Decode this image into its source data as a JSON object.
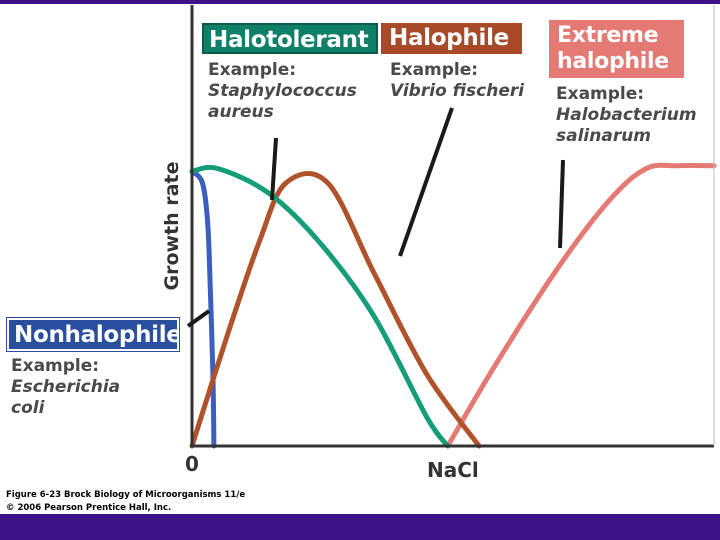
{
  "colors": {
    "frame": "#3d1286",
    "nonhalophile": "#3a5fc0",
    "halotolerant": "#139d78",
    "halophile": "#b0522a",
    "extreme_halophile": "#e57a75",
    "halotolerant_box": "#0f8068",
    "halophile_box": "#a84a28",
    "nonhalophile_box": "#2a4f9e"
  },
  "labels": {
    "halotolerant": {
      "title": "Halotolerant",
      "example_heading": "Example:",
      "species_line1": "Staphylococcus",
      "species_line2": "aureus"
    },
    "halophile": {
      "title": "Halophile",
      "example_heading": "Example:",
      "species_line1": "Vibrio fischeri"
    },
    "extreme_halophile": {
      "title_line1": "Extreme",
      "title_line2": "halophile",
      "example_heading": "Example:",
      "species_line1": "Halobacterium",
      "species_line2": "salinarum"
    },
    "nonhalophile": {
      "title": "Nonhalophile",
      "example_heading": "Example:",
      "species_line1": "Escherichia",
      "species_line2": "coli"
    }
  },
  "axes": {
    "ylabel": "Growth rate",
    "x_origin": "0",
    "xlabel": "NaCl"
  },
  "caption": {
    "line1": "Figure 6-23  Brock Biology of Microorganisms 11/e",
    "line2": "© 2006 Pearson Prentice Hall, Inc."
  },
  "chart_data": {
    "type": "line",
    "title": "",
    "xlabel": "NaCl",
    "ylabel": "Growth rate",
    "xlim": [
      0,
      1
    ],
    "ylim": [
      0,
      1
    ],
    "grid": false,
    "series": [
      {
        "name": "Nonhalophile",
        "x": [
          0.0,
          0.02,
          0.03,
          0.035,
          0.04,
          0.042
        ],
        "y": [
          0.96,
          0.92,
          0.78,
          0.55,
          0.25,
          0.0
        ]
      },
      {
        "name": "Halotolerant",
        "x": [
          0.0,
          0.05,
          0.15,
          0.25,
          0.35,
          0.45,
          0.49
        ],
        "y": [
          0.96,
          0.97,
          0.88,
          0.7,
          0.45,
          0.1,
          0.0
        ]
      },
      {
        "name": "Halophile",
        "x": [
          0.0,
          0.07,
          0.13,
          0.18,
          0.26,
          0.35,
          0.45,
          0.55
        ],
        "y": [
          0.0,
          0.4,
          0.72,
          0.92,
          0.92,
          0.6,
          0.25,
          0.0
        ]
      },
      {
        "name": "Extreme halophile",
        "x": [
          0.49,
          0.58,
          0.7,
          0.8,
          0.87,
          0.93,
          1.0
        ],
        "y": [
          0.0,
          0.28,
          0.62,
          0.86,
          0.97,
          0.98,
          0.98
        ]
      }
    ]
  }
}
